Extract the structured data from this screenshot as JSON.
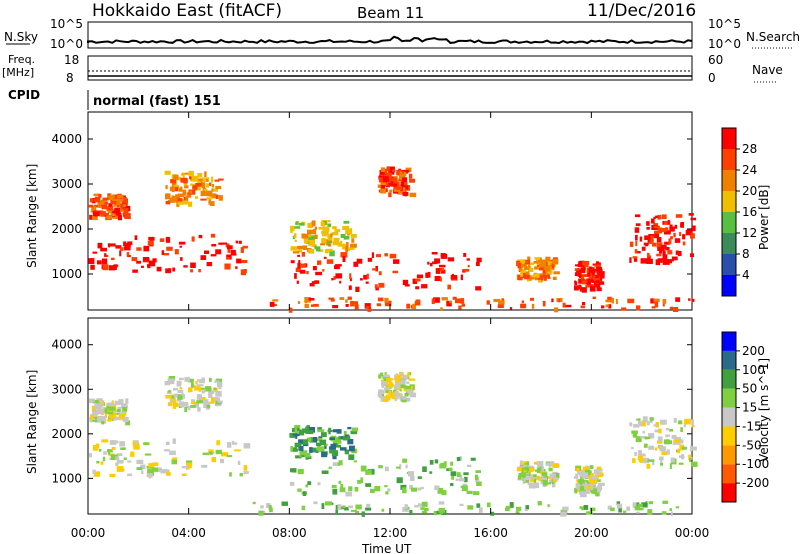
{
  "header": {
    "station": "Hokkaido East (fitACF)",
    "beam": "Beam 11",
    "date": "11/Dec/2016"
  },
  "nsky_panel": {
    "left_label": "N.Sky",
    "right_label": "N.Search",
    "left_ticks": [
      "10^5",
      "10^0"
    ],
    "right_ticks": [
      "10^5",
      "10^0"
    ]
  },
  "freq_panel": {
    "left_label_1": "Freq.",
    "left_label_2": "[MHz]",
    "left_ticks": [
      "18",
      "8"
    ],
    "right_label": "Nave",
    "right_ticks": [
      "60",
      "0"
    ],
    "cpid_label": "CPID",
    "cpid_value": "normal (fast) 151"
  },
  "colors": {
    "power": [
      "#0000ff",
      "#2a4faa",
      "#3a8a5a",
      "#58c040",
      "#f0c000",
      "#f08000",
      "#ff4000",
      "#ff0000"
    ],
    "velocity": [
      "#ff0000",
      "#ff5a00",
      "#ff9900",
      "#ffcc00",
      "#c8c8c8",
      "#7fd040",
      "#40a040",
      "#2a6a8a",
      "#0000ff"
    ]
  },
  "chart_data": [
    {
      "type": "heatmap",
      "name": "power",
      "ylabel": "Slant Range [km]",
      "y_ticks": [
        "1000",
        "2000",
        "3000",
        "4000"
      ],
      "ylim": [
        200,
        4600
      ],
      "colorbar_label": "Power [dB]",
      "colorbar_ticks": [
        "4",
        "8",
        "12",
        "16",
        "20",
        "24",
        "28"
      ],
      "patches": [
        {
          "t0": 0.0,
          "t1": 6.2,
          "r0": 1100,
          "r1": 1900,
          "level": 7
        },
        {
          "t0": 0.0,
          "t1": 1.5,
          "r0": 2300,
          "r1": 2800,
          "level": 6
        },
        {
          "t0": 3.0,
          "t1": 5.2,
          "r0": 2600,
          "r1": 3300,
          "level": 5
        },
        {
          "t0": 8.0,
          "t1": 15.5,
          "r0": 700,
          "r1": 1500,
          "level": 7
        },
        {
          "t0": 8.0,
          "t1": 10.5,
          "r0": 1500,
          "r1": 2200,
          "level": 4
        },
        {
          "t0": 11.5,
          "t1": 12.8,
          "r0": 2800,
          "r1": 3400,
          "level": 6
        },
        {
          "t0": 17.0,
          "t1": 18.5,
          "r0": 900,
          "r1": 1400,
          "level": 5
        },
        {
          "t0": 19.3,
          "t1": 20.3,
          "r0": 700,
          "r1": 1300,
          "level": 7
        },
        {
          "t0": 21.5,
          "t1": 24.0,
          "r0": 1300,
          "r1": 2400,
          "level": 7
        },
        {
          "t0": 6.5,
          "t1": 24.0,
          "r0": 250,
          "r1": 500,
          "level": 6
        }
      ]
    },
    {
      "type": "heatmap",
      "name": "velocity",
      "ylabel": "Slant Range [km]",
      "xlabel": "Time UT",
      "x_ticks": [
        "00:00",
        "04:00",
        "08:00",
        "12:00",
        "16:00",
        "20:00",
        "00:00"
      ],
      "y_ticks": [
        "1000",
        "2000",
        "3000",
        "4000"
      ],
      "ylim": [
        200,
        4600
      ],
      "colorbar_label": "Velocity [m s^-1]",
      "colorbar_ticks": [
        "-200",
        "-100",
        "-50",
        "-15",
        "15",
        "50",
        "100",
        "200"
      ],
      "patches": [
        {
          "t0": 0.0,
          "t1": 6.2,
          "r0": 1100,
          "r1": 1900,
          "level": 4
        },
        {
          "t0": 0.0,
          "t1": 1.5,
          "r0": 2300,
          "r1": 2800,
          "level": 4
        },
        {
          "t0": 3.0,
          "t1": 5.2,
          "r0": 2600,
          "r1": 3300,
          "level": 4
        },
        {
          "t0": 8.0,
          "t1": 15.5,
          "r0": 700,
          "r1": 1500,
          "level": 5
        },
        {
          "t0": 8.0,
          "t1": 10.5,
          "r0": 1500,
          "r1": 2200,
          "level": 6
        },
        {
          "t0": 11.5,
          "t1": 12.8,
          "r0": 2800,
          "r1": 3400,
          "level": 4
        },
        {
          "t0": 17.0,
          "t1": 18.5,
          "r0": 900,
          "r1": 1400,
          "level": 4
        },
        {
          "t0": 19.3,
          "t1": 20.3,
          "r0": 700,
          "r1": 1300,
          "level": 4
        },
        {
          "t0": 21.5,
          "t1": 24.0,
          "r0": 1300,
          "r1": 2400,
          "level": 4
        },
        {
          "t0": 6.5,
          "t1": 24.0,
          "r0": 250,
          "r1": 500,
          "level": 5
        }
      ]
    }
  ]
}
